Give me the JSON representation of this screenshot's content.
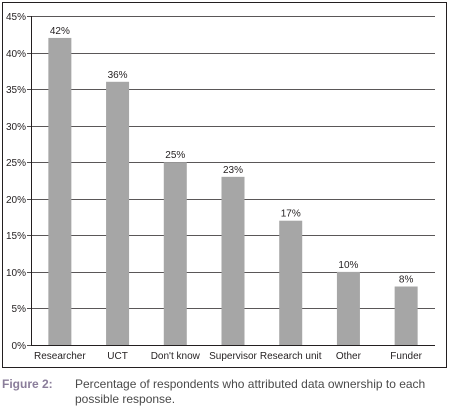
{
  "chart_data": {
    "type": "bar",
    "categories": [
      "Researcher",
      "UCT",
      "Don't know",
      "Supervisor",
      "Research unit",
      "Other",
      "Funder"
    ],
    "values": [
      42,
      36,
      25,
      23,
      17,
      10,
      8
    ],
    "value_labels": [
      "42%",
      "36%",
      "25%",
      "23%",
      "17%",
      "10%",
      "8%"
    ],
    "yticks": [
      0,
      5,
      10,
      15,
      20,
      25,
      30,
      35,
      40,
      45
    ],
    "ytick_labels": [
      "0%",
      "5%",
      "10%",
      "15%",
      "20%",
      "25%",
      "30%",
      "35%",
      "40%",
      "45%"
    ],
    "ylim": [
      0,
      45
    ],
    "grid": true,
    "bar_color": "#a6a6a6",
    "title": "",
    "xlabel": "",
    "ylabel": ""
  },
  "caption": {
    "label": "Figure 2:",
    "text": "Percentage of respondents who attributed data ownership to each possible response."
  }
}
